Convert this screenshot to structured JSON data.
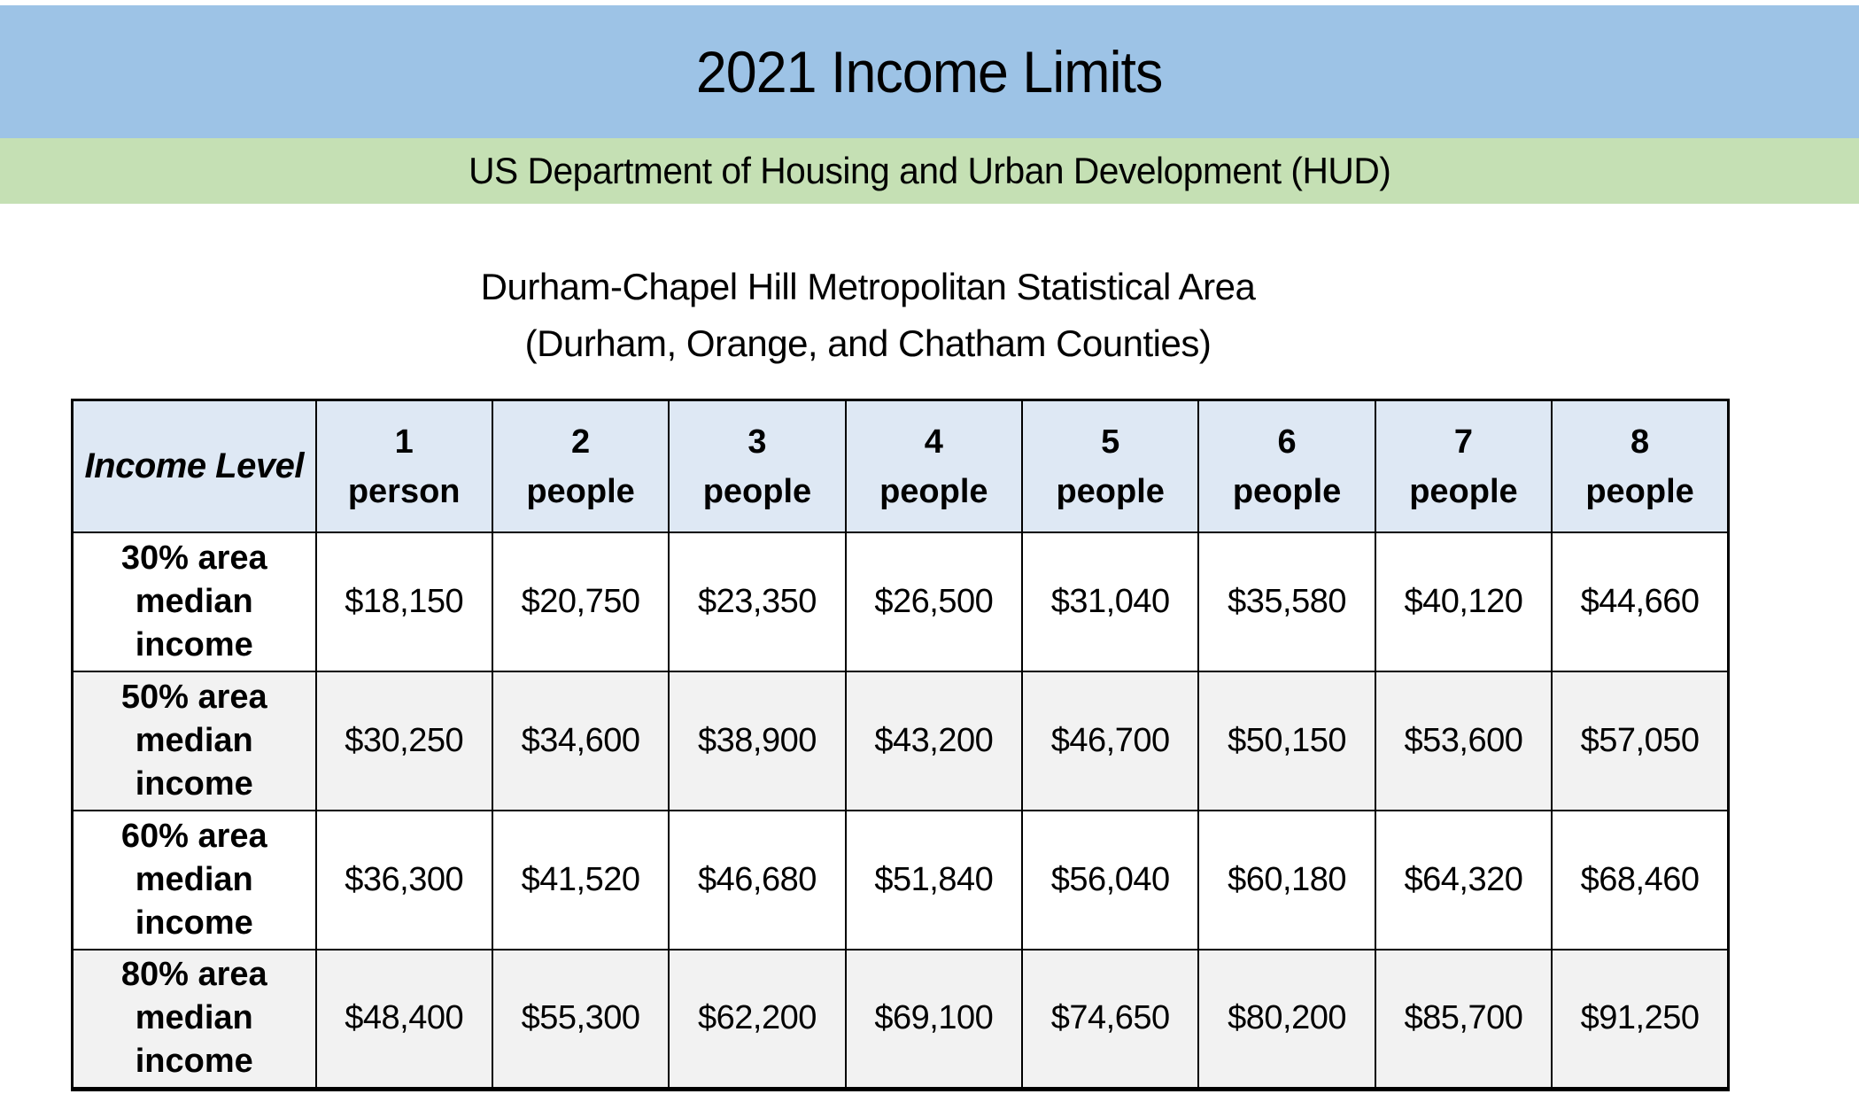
{
  "header": {
    "title": "2021 Income Limits",
    "org_banner": "US Department of Housing and Urban Development (HUD)",
    "area_title_line1": "Durham-Chapel Hill Metropolitan Statistical Area",
    "area_title_line2": "(Durham, Orange, and Chatham Counties)"
  },
  "colors": {
    "title_bar_bg": "#9DC3E6",
    "org_bar_bg": "#C5E0B4",
    "table_header_bg": "#DEE8F4",
    "row_stripe_bg": "#F2F2F2",
    "table_border": "#000000"
  },
  "table": {
    "corner_label": "Income Level",
    "columns": [
      {
        "line1": "1",
        "line2": "person"
      },
      {
        "line1": "2",
        "line2": "people"
      },
      {
        "line1": "3",
        "line2": "people"
      },
      {
        "line1": "4",
        "line2": "people"
      },
      {
        "line1": "5",
        "line2": "people"
      },
      {
        "line1": "6",
        "line2": "people"
      },
      {
        "line1": "7",
        "line2": "people"
      },
      {
        "line1": "8",
        "line2": "people"
      }
    ],
    "rows": [
      {
        "label": "30% area median income",
        "values": [
          "$18,150",
          "$20,750",
          "$23,350",
          "$26,500",
          "$31,040",
          "$35,580",
          "$40,120",
          "$44,660"
        ]
      },
      {
        "label": "50% area median income",
        "values": [
          "$30,250",
          "$34,600",
          "$38,900",
          "$43,200",
          "$46,700",
          "$50,150",
          "$53,600",
          "$57,050"
        ]
      },
      {
        "label": "60% area median income",
        "values": [
          "$36,300",
          "$41,520",
          "$46,680",
          "$51,840",
          "$56,040",
          "$60,180",
          "$64,320",
          "$68,460"
        ]
      },
      {
        "label": "80% area median income",
        "values": [
          "$48,400",
          "$55,300",
          "$62,200",
          "$69,100",
          "$74,650",
          "$80,200",
          "$85,700",
          "$91,250"
        ]
      }
    ]
  }
}
